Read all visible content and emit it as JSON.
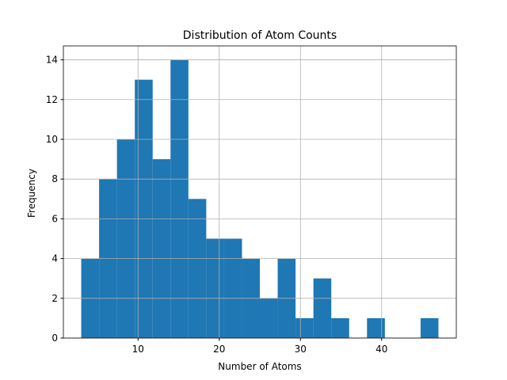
{
  "chart_data": {
    "type": "histogram",
    "title": "Distribution of Atom Counts",
    "x_label": "Number of Atoms",
    "y_label": "Frequency",
    "bins": [
      3,
      5.2,
      7.4,
      9.6,
      11.8,
      14,
      16.2,
      18.4,
      20.6,
      22.8,
      25,
      27.2,
      29.4,
      31.6,
      33.8,
      36,
      38.2,
      40.4,
      42.6,
      44.8,
      47
    ],
    "values": [
      4,
      8,
      10,
      13,
      9,
      14,
      7,
      5,
      5,
      4,
      2,
      4,
      1,
      3,
      1,
      0,
      1,
      0,
      0,
      1
    ],
    "color": "#1f77b4",
    "xlim": [
      0.8,
      49.2
    ],
    "xticks": [
      10,
      20,
      30,
      40
    ],
    "ylim": [
      0,
      14.7
    ],
    "yticks": [
      0,
      2,
      4,
      6,
      8,
      10,
      12,
      14
    ],
    "grid": true
  }
}
